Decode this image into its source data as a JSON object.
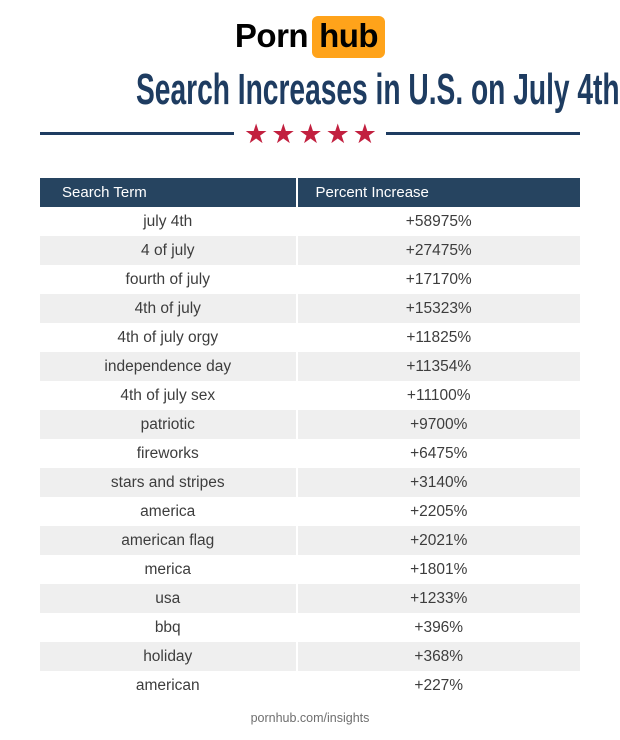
{
  "logo": {
    "part1": "Porn",
    "part2": "hub"
  },
  "title": "Search Increases in U.S. on July 4th",
  "divider": {
    "stars": "★★★★★"
  },
  "table": {
    "headers": [
      "Search Term",
      "Percent Increase"
    ],
    "rows": [
      {
        "term": "july 4th",
        "value": "+58975%"
      },
      {
        "term": "4 of july",
        "value": "+27475%"
      },
      {
        "term": "fourth of july",
        "value": "+17170%"
      },
      {
        "term": "4th of july",
        "value": "+15323%"
      },
      {
        "term": "4th of july orgy",
        "value": "+11825%"
      },
      {
        "term": "independence day",
        "value": "+11354%"
      },
      {
        "term": "4th of july sex",
        "value": "+11100%"
      },
      {
        "term": "patriotic",
        "value": "+9700%"
      },
      {
        "term": "fireworks",
        "value": "+6475%"
      },
      {
        "term": "stars and stripes",
        "value": "+3140%"
      },
      {
        "term": "america",
        "value": "+2205%"
      },
      {
        "term": "american flag",
        "value": "+2021%"
      },
      {
        "term": "merica",
        "value": "+1801%"
      },
      {
        "term": "usa",
        "value": "+1233%"
      },
      {
        "term": "bbq",
        "value": "+396%"
      },
      {
        "term": "holiday",
        "value": "+368%"
      },
      {
        "term": "american",
        "value": "+227%"
      }
    ]
  },
  "footer": "pornhub.com/insights",
  "colors": {
    "brand_orange": "#ffa31a",
    "header_navy": "#264460",
    "title_navy": "#1e3c61",
    "star_red": "#c2203f",
    "alt_row_gray": "#efefef",
    "row_text": "#3d3d3d"
  },
  "chart_data": {
    "type": "table",
    "title": "Search Increases in U.S. on July 4th",
    "columns": [
      "Search Term",
      "Percent Increase"
    ],
    "categories": [
      "july 4th",
      "4 of july",
      "fourth of july",
      "4th of july",
      "4th of july orgy",
      "independence day",
      "4th of july sex",
      "patriotic",
      "fireworks",
      "stars and stripes",
      "america",
      "american flag",
      "merica",
      "usa",
      "bbq",
      "holiday",
      "american"
    ],
    "values": [
      58975,
      27475,
      17170,
      15323,
      11825,
      11354,
      11100,
      9700,
      6475,
      3140,
      2205,
      2021,
      1801,
      1233,
      396,
      368,
      227
    ],
    "unit": "percent increase"
  }
}
